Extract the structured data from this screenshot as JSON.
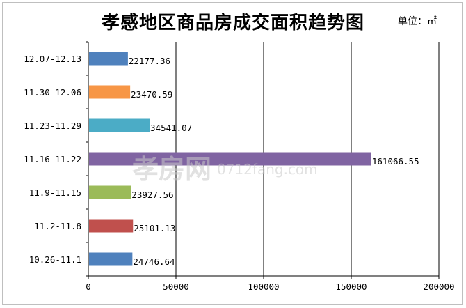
{
  "chart_data": {
    "type": "bar",
    "orientation": "horizontal",
    "title": "孝感地区商品房成交面积趋势图",
    "unit": "单位：㎡",
    "categories": [
      "12.07-12.13",
      "11.30-12.06",
      "11.23-11.29",
      "11.16-11.22",
      "11.9-11.15",
      "11.2-11.8",
      "10.26-11.1"
    ],
    "values": [
      22177.36,
      23470.59,
      34541.07,
      161066.55,
      23927.56,
      25101.13,
      24746.64
    ],
    "value_labels": [
      "22177.36",
      "23470.59",
      "34541.07",
      "161066.55",
      "23927.56",
      "25101.13",
      "24746.64"
    ],
    "colors": [
      "#4f81bd",
      "#f79646",
      "#4bacc6",
      "#8064a2",
      "#9bbb59",
      "#c0504d",
      "#4f81bd"
    ],
    "xlim": [
      0,
      200000
    ],
    "xticks": [
      0,
      50000,
      100000,
      150000,
      200000
    ],
    "xtick_labels": [
      "0",
      "50000",
      "100000",
      "150000",
      "200000"
    ],
    "grid": true
  },
  "watermark": {
    "logo_text": "孝房网",
    "url_text": "0712fang.com"
  }
}
